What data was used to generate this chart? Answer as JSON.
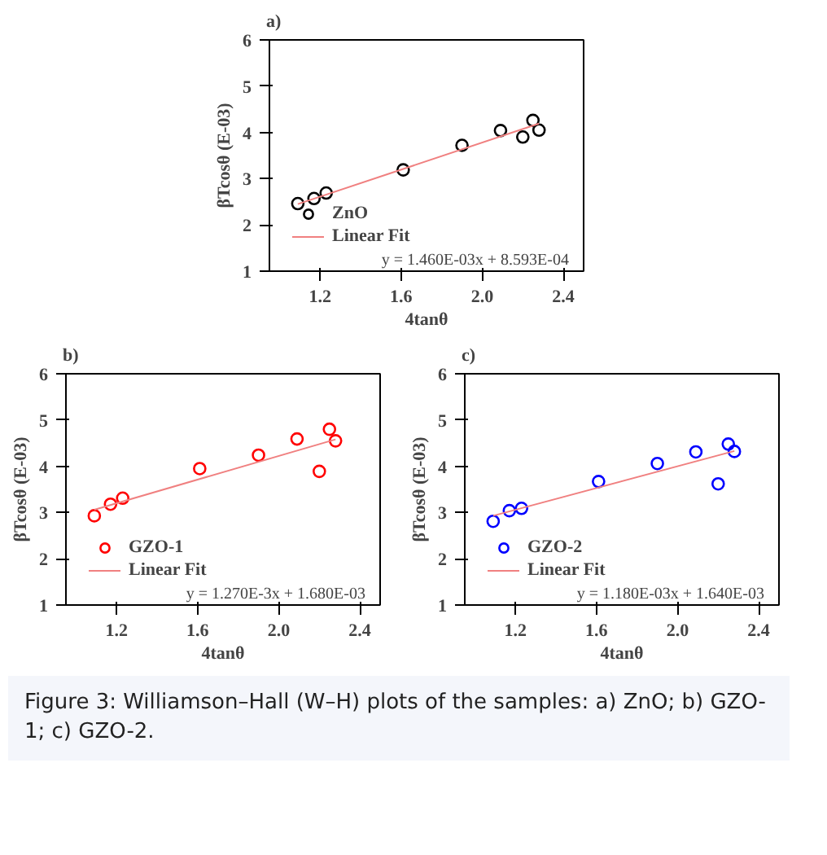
{
  "chart_data": [
    {
      "type": "scatter",
      "title": "a)",
      "xlabel": "4tanθ",
      "ylabel": "βTcosθ (E-03)",
      "xlim": [
        0.95,
        2.5
      ],
      "ylim": [
        1,
        6
      ],
      "xticks": [
        {
          "value": 1.2,
          "label": "1.2"
        },
        {
          "value": 1.6,
          "label": "1.6"
        },
        {
          "value": 2.0,
          "label": "2.0"
        },
        {
          "value": 2.4,
          "label": "2.4"
        }
      ],
      "yticks": [
        1,
        2,
        3,
        4,
        5,
        6
      ],
      "grid": false,
      "legend": "bottom left",
      "series": [
        {
          "name": "ZnO",
          "marker": "circle",
          "color": "#000000",
          "x": [
            1.09,
            1.17,
            1.23,
            1.61,
            1.9,
            2.09,
            2.2,
            2.25,
            2.28
          ],
          "values": [
            2.46,
            2.57,
            2.69,
            3.19,
            3.72,
            4.04,
            3.9,
            4.26,
            4.05
          ]
        },
        {
          "name": "Linear Fit",
          "type": "line",
          "color": "#f08080",
          "x": [
            1.09,
            2.28
          ],
          "values": [
            2.45,
            4.19
          ]
        }
      ],
      "annotations": [
        "y = 1.460E-03x + 8.593E-04"
      ]
    },
    {
      "type": "scatter",
      "title": "b)",
      "xlabel": "4tanθ",
      "ylabel": "βTcosθ (E-03)",
      "xlim": [
        0.95,
        2.5
      ],
      "ylim": [
        1,
        6
      ],
      "xticks": [
        {
          "value": 1.2,
          "label": "1.2"
        },
        {
          "value": 1.6,
          "label": "1.6"
        },
        {
          "value": 2.0,
          "label": "2.0"
        },
        {
          "value": 2.4,
          "label": "2.4"
        }
      ],
      "yticks": [
        1,
        2,
        3,
        4,
        5,
        6
      ],
      "grid": false,
      "legend": "bottom left",
      "series": [
        {
          "name": "GZO-1",
          "marker": "circle",
          "color": "#ff0000",
          "x": [
            1.09,
            1.17,
            1.23,
            1.61,
            1.9,
            2.09,
            2.2,
            2.25,
            2.28
          ],
          "values": [
            2.93,
            3.18,
            3.31,
            3.95,
            4.24,
            4.59,
            3.89,
            4.8,
            4.55
          ]
        },
        {
          "name": "Linear Fit",
          "type": "line",
          "color": "#f08080",
          "x": [
            1.09,
            2.28
          ],
          "values": [
            3.06,
            4.58
          ]
        }
      ],
      "annotations": [
        "y = 1.270E-3x + 1.680E-03"
      ]
    },
    {
      "type": "scatter",
      "title": "c)",
      "xlabel": "4tanθ",
      "ylabel": "βTcosθ (E-03)",
      "xlim": [
        0.95,
        2.5
      ],
      "ylim": [
        1,
        6
      ],
      "xticks": [
        {
          "value": 1.2,
          "label": "1.2"
        },
        {
          "value": 1.6,
          "label": "1.6"
        },
        {
          "value": 2.0,
          "label": "2.0"
        },
        {
          "value": 2.4,
          "label": "2.4"
        }
      ],
      "yticks": [
        1,
        2,
        3,
        4,
        5,
        6
      ],
      "grid": false,
      "legend": "bottom left",
      "series": [
        {
          "name": "GZO-2",
          "marker": "circle",
          "color": "#0000ff",
          "x": [
            1.09,
            1.17,
            1.23,
            1.61,
            1.9,
            2.09,
            2.2,
            2.25,
            2.28
          ],
          "values": [
            2.81,
            3.04,
            3.09,
            3.67,
            4.06,
            4.31,
            3.62,
            4.48,
            4.32
          ]
        },
        {
          "name": "Linear Fit",
          "type": "line",
          "color": "#f08080",
          "x": [
            1.09,
            2.28
          ],
          "values": [
            2.93,
            4.33
          ]
        }
      ],
      "annotations": [
        "y = 1.180E-03x + 1.640E-03",
        "Figure 3: Williamson–Hall (W–H) plots of the samples: a) ZnO; b) GZO-1; c) GZO-2."
      ]
    }
  ]
}
